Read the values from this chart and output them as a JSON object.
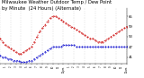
{
  "title_line1": "Milwaukee Weather Outdoor Temp / Dew Point",
  "title_line2": "by Minute  (24 Hours) (Alternate)",
  "title_fontsize": 3.8,
  "title_color": "#000000",
  "bg_color": "#ffffff",
  "plot_bg_color": "#ffffff",
  "grid_color": "#999999",
  "ylabel_right_values": [
    41,
    47,
    53,
    59,
    65
  ],
  "ylim": [
    37,
    70
  ],
  "xlim": [
    0,
    1439
  ],
  "red_x": [
    0,
    30,
    60,
    90,
    120,
    150,
    180,
    210,
    240,
    270,
    300,
    330,
    360,
    390,
    420,
    450,
    480,
    510,
    540,
    570,
    600,
    630,
    660,
    690,
    720,
    750,
    780,
    810,
    840,
    870,
    900,
    930,
    960,
    990,
    1020,
    1050,
    1080,
    1110,
    1140,
    1170,
    1200,
    1230,
    1260,
    1290,
    1320,
    1350,
    1380,
    1410,
    1439
  ],
  "red_y": [
    52,
    50,
    48,
    47,
    46,
    45,
    44,
    43,
    43,
    44,
    45,
    46,
    47,
    50,
    53,
    56,
    58,
    60,
    62,
    64,
    65,
    65,
    64,
    63,
    62,
    61,
    60,
    59,
    58,
    57,
    56,
    55,
    54,
    53,
    52,
    52,
    51,
    50,
    50,
    50,
    51,
    52,
    53,
    54,
    55,
    56,
    57,
    58,
    59
  ],
  "blue_x": [
    0,
    30,
    60,
    90,
    120,
    150,
    180,
    210,
    240,
    270,
    300,
    330,
    360,
    390,
    420,
    450,
    480,
    510,
    540,
    570,
    600,
    630,
    660,
    690,
    720,
    750,
    780,
    810,
    840,
    870,
    900,
    930,
    960,
    990,
    1020,
    1050,
    1080,
    1110,
    1140,
    1170,
    1200,
    1230,
    1260,
    1290,
    1320,
    1350,
    1380,
    1410,
    1439
  ],
  "blue_y": [
    42,
    41,
    41,
    40,
    40,
    39,
    39,
    39,
    38,
    38,
    38,
    39,
    39,
    40,
    41,
    42,
    43,
    44,
    45,
    46,
    47,
    47,
    47,
    47,
    48,
    48,
    48,
    48,
    48,
    47,
    47,
    47,
    47,
    47,
    47,
    47,
    47,
    47,
    47,
    47,
    47,
    47,
    47,
    47,
    47,
    47,
    47,
    47,
    47
  ],
  "red_color": "#cc0000",
  "blue_color": "#0000cc",
  "vgrid_positions": [
    0,
    120,
    240,
    360,
    480,
    600,
    720,
    840,
    960,
    1080,
    1200,
    1320,
    1439
  ],
  "xtick_positions": [
    0,
    60,
    120,
    180,
    240,
    300,
    360,
    420,
    480,
    540,
    600,
    660,
    720,
    780,
    840,
    900,
    960,
    1020,
    1080,
    1140,
    1200,
    1260,
    1320,
    1380,
    1439
  ],
  "xtick_labels": [
    "12am",
    "1",
    "2",
    "3",
    "4",
    "5",
    "6",
    "7",
    "8",
    "9",
    "10",
    "11",
    "12pm",
    "1",
    "2",
    "3",
    "4",
    "5",
    "6",
    "7",
    "8",
    "9",
    "10",
    "11",
    "12am"
  ]
}
